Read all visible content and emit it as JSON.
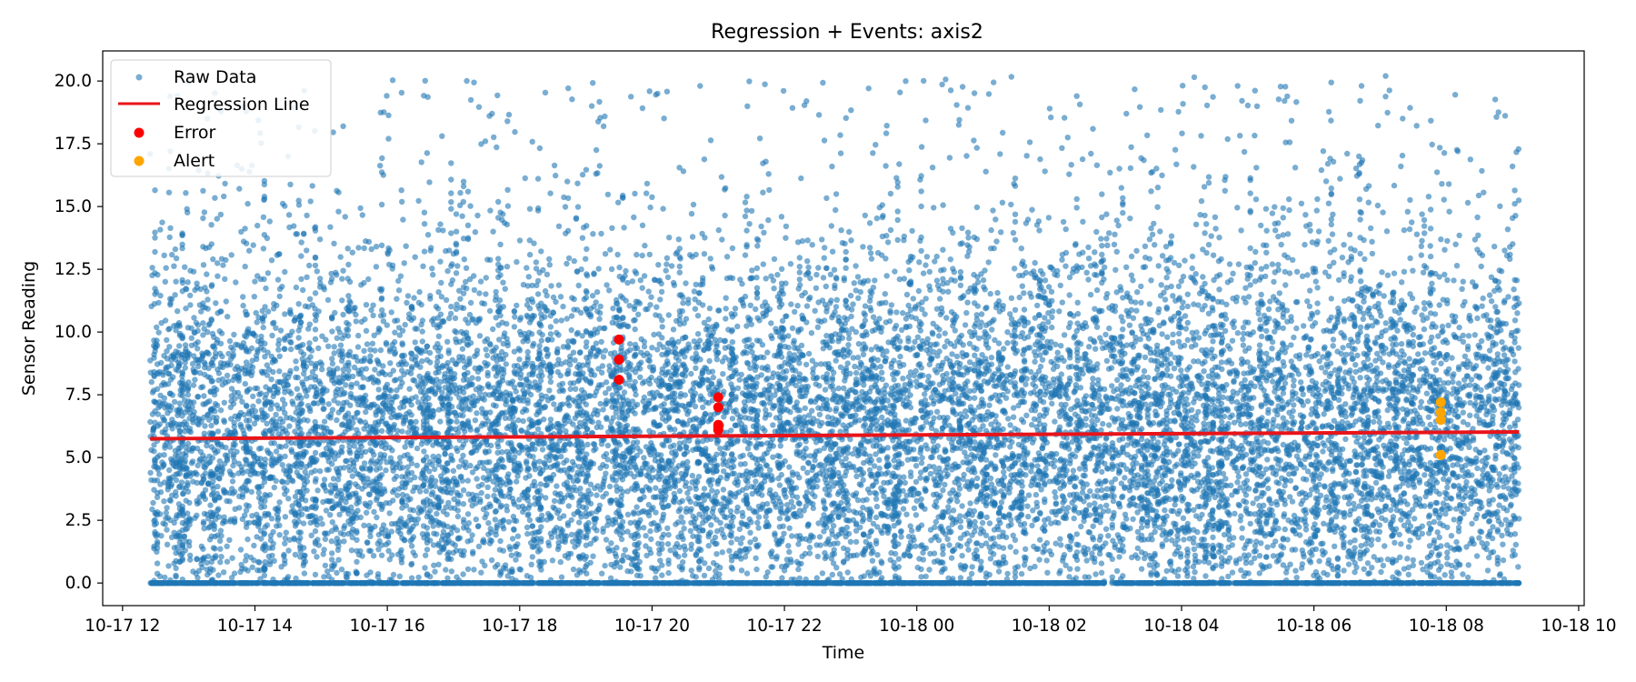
{
  "chart_data": {
    "type": "scatter",
    "title": "Regression + Events: axis2",
    "xlabel": "Time",
    "ylabel": "Sensor Reading",
    "x_axis": {
      "kind": "datetime",
      "range": [
        "2024-10-17 11:42",
        "2024-10-18 10:05"
      ],
      "ticks": [
        "10-17 12",
        "10-17 14",
        "10-17 16",
        "10-17 18",
        "10-17 20",
        "10-17 22",
        "10-18 00",
        "10-18 02",
        "10-18 04",
        "10-18 06",
        "10-18 08",
        "10-18 10"
      ]
    },
    "y_axis": {
      "range": [
        -0.9,
        21.2
      ],
      "ticks": [
        "0.0",
        "2.5",
        "5.0",
        "7.5",
        "10.0",
        "12.5",
        "15.0",
        "17.5",
        "20.0"
      ]
    },
    "grid": false,
    "legend_position": "top-left",
    "colors": {
      "raw_data": "#1f77b4",
      "regression_line": "#e8141a",
      "error": "#ff0000",
      "alert": "#ffa500"
    },
    "data_range": {
      "x_start": "2024-10-17 12:25",
      "x_end": "2024-10-18 09:06",
      "y_min": 0.0,
      "y_max": 20.2
    },
    "series": [
      {
        "name": "Raw Data",
        "kind": "scatter",
        "note_marker": "small translucent circles",
        "sample_peaks": [
          {
            "x": "2024-10-17 12:25",
            "y": 17.1
          },
          {
            "x": "2024-10-17 14:30",
            "y": 17.0
          },
          {
            "x": "2024-10-17 15:20",
            "y": 18.2
          },
          {
            "x": "2024-10-17 17:35",
            "y": 18.7
          },
          {
            "x": "2024-10-17 20:05",
            "y": 19.5
          },
          {
            "x": "2024-10-17 22:20",
            "y": 19.2
          },
          {
            "x": "2024-10-18 02:25",
            "y": 19.4
          },
          {
            "x": "2024-10-18 03:10",
            "y": 18.7
          },
          {
            "x": "2024-10-18 07:05",
            "y": 20.2
          },
          {
            "x": "2024-10-18 09:00",
            "y": 16.6
          }
        ]
      },
      {
        "name": "Regression Line",
        "kind": "line",
        "points": [
          {
            "x": "2024-10-17 12:25",
            "y": 5.75
          },
          {
            "x": "2024-10-18 09:06",
            "y": 6.02
          }
        ]
      },
      {
        "name": "Error",
        "kind": "scatter",
        "points": [
          {
            "x": "2024-10-17 19:30",
            "y": 9.7
          },
          {
            "x": "2024-10-17 19:30",
            "y": 8.9
          },
          {
            "x": "2024-10-17 19:30",
            "y": 8.1
          },
          {
            "x": "2024-10-17 21:00",
            "y": 7.4
          },
          {
            "x": "2024-10-17 21:00",
            "y": 7.0
          },
          {
            "x": "2024-10-17 21:00",
            "y": 6.3
          },
          {
            "x": "2024-10-17 21:00",
            "y": 6.2
          },
          {
            "x": "2024-10-17 21:00",
            "y": 6.1
          }
        ]
      },
      {
        "name": "Alert",
        "kind": "scatter",
        "points": [
          {
            "x": "2024-10-18 07:55",
            "y": 7.2
          },
          {
            "x": "2024-10-18 07:55",
            "y": 6.8
          },
          {
            "x": "2024-10-18 07:55",
            "y": 6.5
          },
          {
            "x": "2024-10-18 07:55",
            "y": 5.1
          }
        ]
      }
    ]
  }
}
